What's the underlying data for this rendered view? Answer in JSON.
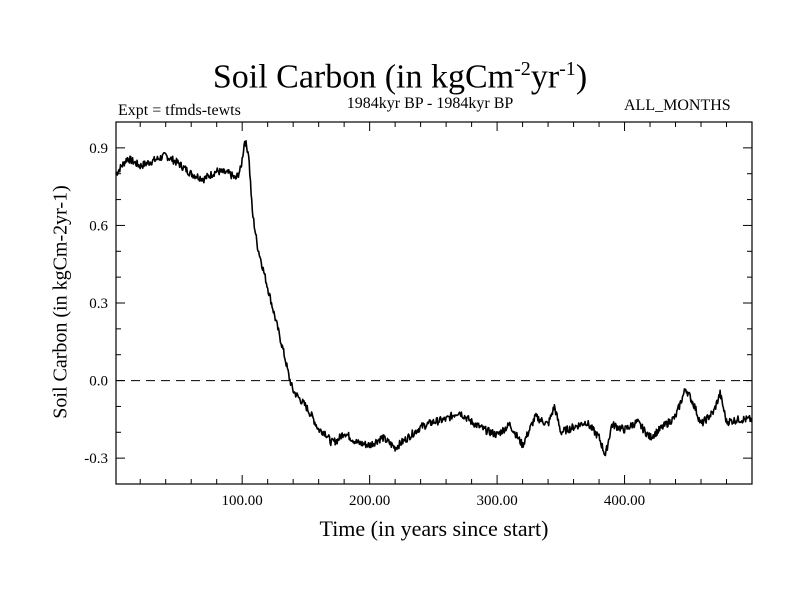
{
  "header": {
    "title_main": "Soil Carbon (in kgCm",
    "title_exp1": "-2",
    "title_mid": "yr",
    "title_exp2": "-1",
    "title_close": ")",
    "expt": "Expt = tfmds-tewts",
    "period": "1984kyr BP - 1984kyr BP",
    "months": "ALL_MONTHS"
  },
  "chart_data": {
    "type": "line",
    "title": "Soil Carbon (in kgCm-2yr-1)",
    "xlabel": "Time (in years since start)",
    "ylabel": "Soil Carbon (in kgCm-2yr-1)",
    "xlim": [
      1,
      500
    ],
    "ylim": [
      -0.4,
      1.0
    ],
    "xticks": [
      100,
      200,
      300,
      400
    ],
    "xtick_labels": [
      "100.00",
      "200.00",
      "300.00",
      "400.00"
    ],
    "yticks": [
      -0.3,
      0.0,
      0.3,
      0.6,
      0.9
    ],
    "ytick_labels": [
      "-0.3",
      "0.0",
      "0.3",
      "0.6",
      "0.9"
    ],
    "reference_line": {
      "y": 0.0,
      "style": "dashed"
    },
    "series": [
      {
        "name": "Soil Carbon",
        "color": "#000000",
        "x": [
          1,
          10,
          20,
          30,
          40,
          50,
          60,
          70,
          80,
          90,
          95,
          99,
          102,
          105,
          108,
          112,
          117,
          122,
          128,
          133,
          137,
          140,
          145,
          150,
          155,
          160,
          165,
          170,
          175,
          180,
          190,
          200,
          210,
          220,
          230,
          240,
          250,
          260,
          270,
          280,
          290,
          300,
          310,
          320,
          330,
          340,
          345,
          350,
          360,
          370,
          380,
          385,
          390,
          400,
          410,
          420,
          430,
          440,
          448,
          455,
          460,
          470,
          475,
          480,
          490,
          500
        ],
        "y": [
          0.8,
          0.86,
          0.83,
          0.85,
          0.87,
          0.84,
          0.8,
          0.78,
          0.81,
          0.8,
          0.78,
          0.82,
          0.93,
          0.88,
          0.65,
          0.52,
          0.42,
          0.32,
          0.2,
          0.1,
          0.01,
          -0.04,
          -0.07,
          -0.1,
          -0.14,
          -0.19,
          -0.2,
          -0.24,
          -0.23,
          -0.2,
          -0.24,
          -0.25,
          -0.22,
          -0.26,
          -0.22,
          -0.18,
          -0.16,
          -0.15,
          -0.12,
          -0.16,
          -0.19,
          -0.21,
          -0.17,
          -0.25,
          -0.14,
          -0.17,
          -0.1,
          -0.2,
          -0.18,
          -0.16,
          -0.22,
          -0.29,
          -0.17,
          -0.19,
          -0.16,
          -0.22,
          -0.18,
          -0.14,
          -0.03,
          -0.1,
          -0.17,
          -0.12,
          -0.05,
          -0.16,
          -0.15,
          -0.15
        ]
      }
    ]
  }
}
